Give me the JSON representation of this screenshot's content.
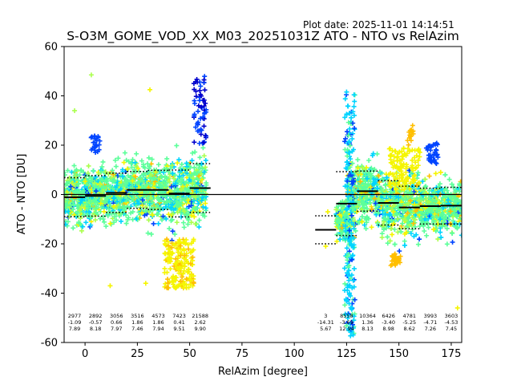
{
  "plot_date": "Plot date: 2025-11-01 14:14:51",
  "chart_data": {
    "type": "scatter",
    "title": "S-O3M_GOME_VOD_XX_M03_20251031Z ATO - NTO vs RelAzim",
    "xlabel": "RelAzim [degree]",
    "ylabel": "ATO - NTO [DU]",
    "xlim": [
      -10,
      180
    ],
    "ylim": [
      -60,
      60
    ],
    "xticks": [
      0,
      25,
      50,
      75,
      100,
      125,
      150,
      175
    ],
    "yticks": [
      -60,
      -40,
      -20,
      0,
      20,
      40,
      60
    ],
    "zero_line": 0,
    "colors": {
      "dense": "#5cff9a",
      "cyan": "#00d4ff",
      "yellow": "#f5f500",
      "lightgreen": "#aaff4d",
      "orange": "#ffbf00",
      "blue": "#0044ff",
      "navy": "#0000cc"
    },
    "clusters": [
      {
        "x": [
          -10,
          58
        ],
        "y": [
          -30,
          25
        ]
      },
      {
        "x": [
          120,
          180
        ],
        "y": [
          -60,
          45
        ]
      }
    ],
    "bins": [
      {
        "x_range": [
          -10,
          0
        ],
        "count": "2977",
        "mean": "-1.09",
        "std": "7.89",
        "mean_value": -1.09,
        "std_value": 7.89
      },
      {
        "x_range": [
          0,
          10
        ],
        "count": "2892",
        "mean": "-0.57",
        "std": "8.18",
        "mean_value": -0.57,
        "std_value": 8.18
      },
      {
        "x_range": [
          10,
          20
        ],
        "count": "3056",
        "mean": "0.66",
        "std": "7.97",
        "mean_value": 0.66,
        "std_value": 7.97
      },
      {
        "x_range": [
          20,
          30
        ],
        "count": "3516",
        "mean": "1.86",
        "std": "7.46",
        "mean_value": 1.86,
        "std_value": 7.46
      },
      {
        "x_range": [
          30,
          40
        ],
        "count": "4573",
        "mean": "1.86",
        "std": "7.94",
        "mean_value": 1.86,
        "std_value": 7.94
      },
      {
        "x_range": [
          40,
          50
        ],
        "count": "7423",
        "mean": "0.41",
        "std": "9.51",
        "mean_value": 0.41,
        "std_value": 9.51
      },
      {
        "x_range": [
          50,
          60
        ],
        "count": "21588",
        "mean": "2.62",
        "std": "9.90",
        "mean_value": 2.62,
        "std_value": 9.9
      },
      {
        "x_range": [
          110,
          120
        ],
        "count": "3",
        "mean": "-14.31",
        "std": "5.67",
        "mean_value": -14.31,
        "std_value": 5.67
      },
      {
        "x_range": [
          120,
          130
        ],
        "count": "8558",
        "mean": "-3.69",
        "std": "12.94",
        "mean_value": -3.69,
        "std_value": 12.94
      },
      {
        "x_range": [
          130,
          140
        ],
        "count": "10364",
        "mean": "1.36",
        "std": "8.13",
        "mean_value": 1.36,
        "std_value": 8.13
      },
      {
        "x_range": [
          140,
          150
        ],
        "count": "6426",
        "mean": "-3.40",
        "std": "8.98",
        "mean_value": -3.4,
        "std_value": 8.98
      },
      {
        "x_range": [
          150,
          160
        ],
        "count": "4781",
        "mean": "-5.25",
        "std": "8.62",
        "mean_value": -5.25,
        "std_value": 8.62
      },
      {
        "x_range": [
          160,
          170
        ],
        "count": "3993",
        "mean": "-4.71",
        "std": "7.26",
        "mean_value": -4.71,
        "std_value": 7.26
      },
      {
        "x_range": [
          170,
          180
        ],
        "count": "3603",
        "mean": "-4.53",
        "std": "7.45",
        "mean_value": -4.53,
        "std_value": 7.45
      }
    ]
  }
}
